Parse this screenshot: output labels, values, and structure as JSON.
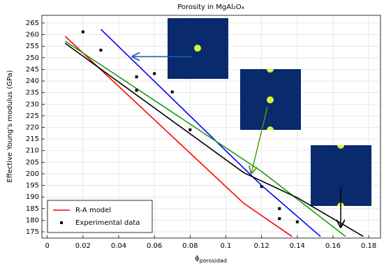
{
  "chart_data": {
    "type": "line",
    "title": "Porosity in MgAl₂O₄",
    "xlabel": {
      "symbol": "ϕ",
      "subscript": "porosidad"
    },
    "ylabel": "Effective Young's modulus (GPa)",
    "xlim": [
      -0.003,
      0.1866
    ],
    "ylim": [
      172.3,
      268.3
    ],
    "xticks": [
      0,
      0.02,
      0.04,
      0.06,
      0.08,
      0.1,
      0.12,
      0.14,
      0.16,
      0.18
    ],
    "yticks": [
      175,
      180,
      185,
      190,
      195,
      200,
      205,
      210,
      215,
      220,
      225,
      230,
      235,
      240,
      245,
      250,
      255,
      260,
      265
    ],
    "grid": true,
    "legend": "lower left",
    "series": [
      {
        "name": "R-A model",
        "color": "#ff0000",
        "x": [
          0.01,
          0.11,
          0.137
        ],
        "values": [
          259.3,
          187.3,
          173
        ]
      },
      {
        "color": "#0000ff",
        "x": [
          0.03,
          0.12,
          0.153
        ],
        "values": [
          262.3,
          195,
          173
        ]
      },
      {
        "color": "#1f9a10",
        "x": [
          0.01,
          0.12,
          0.167
        ],
        "values": [
          257.2,
          201,
          173
        ]
      },
      {
        "color": "#000000",
        "x": [
          0.01,
          0.11,
          0.14,
          0.177
        ],
        "values": [
          256.3,
          200.5,
          189.7,
          173
        ]
      },
      {
        "name": "Experimental data",
        "type": "scatter",
        "color": "#000000",
        "x": [
          0.02,
          0.03,
          0.05,
          0.05,
          0.06,
          0.07,
          0.08,
          0.12,
          0.13,
          0.13,
          0.14
        ],
        "values": [
          261.2,
          253.3,
          241.8,
          236,
          243.2,
          235.3,
          219,
          194.5,
          185,
          180.7,
          179.3
        ]
      }
    ]
  }
}
